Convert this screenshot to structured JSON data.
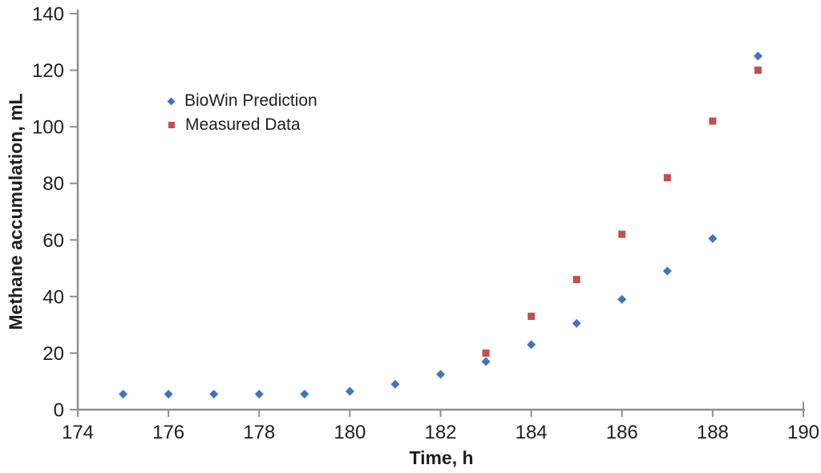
{
  "chart_data": {
    "type": "scatter",
    "title": "",
    "xlabel": "Time, h",
    "ylabel": "Methane accumulation, mL",
    "xlim": [
      174,
      190
    ],
    "ylim": [
      0,
      140
    ],
    "x_ticks": [
      174,
      176,
      178,
      180,
      182,
      184,
      186,
      188,
      190
    ],
    "y_ticks": [
      0,
      20,
      40,
      60,
      80,
      100,
      120,
      140
    ],
    "grid": false,
    "legend_position": "inside-upper-left",
    "axis_color": "#8F8F8F",
    "text_color": "#1F1F1F",
    "background_color": "#FFFFFF",
    "series": [
      {
        "name": "BioWin Prediction",
        "marker": "diamond",
        "color": "#4075BB",
        "x": [
          175,
          176,
          177,
          178,
          179,
          180,
          181,
          182,
          183,
          184,
          185,
          186,
          187,
          188,
          189
        ],
        "y": [
          5.5,
          5.5,
          5.5,
          5.5,
          5.5,
          6.5,
          9,
          12.5,
          17,
          23,
          30.5,
          39,
          49,
          60.5,
          125
        ]
      },
      {
        "name": "Measured Data",
        "marker": "square",
        "color": "#C0504D",
        "x": [
          183,
          184,
          185,
          186,
          187,
          188,
          189
        ],
        "y": [
          20,
          33,
          46,
          62,
          82,
          102,
          120
        ]
      }
    ]
  }
}
